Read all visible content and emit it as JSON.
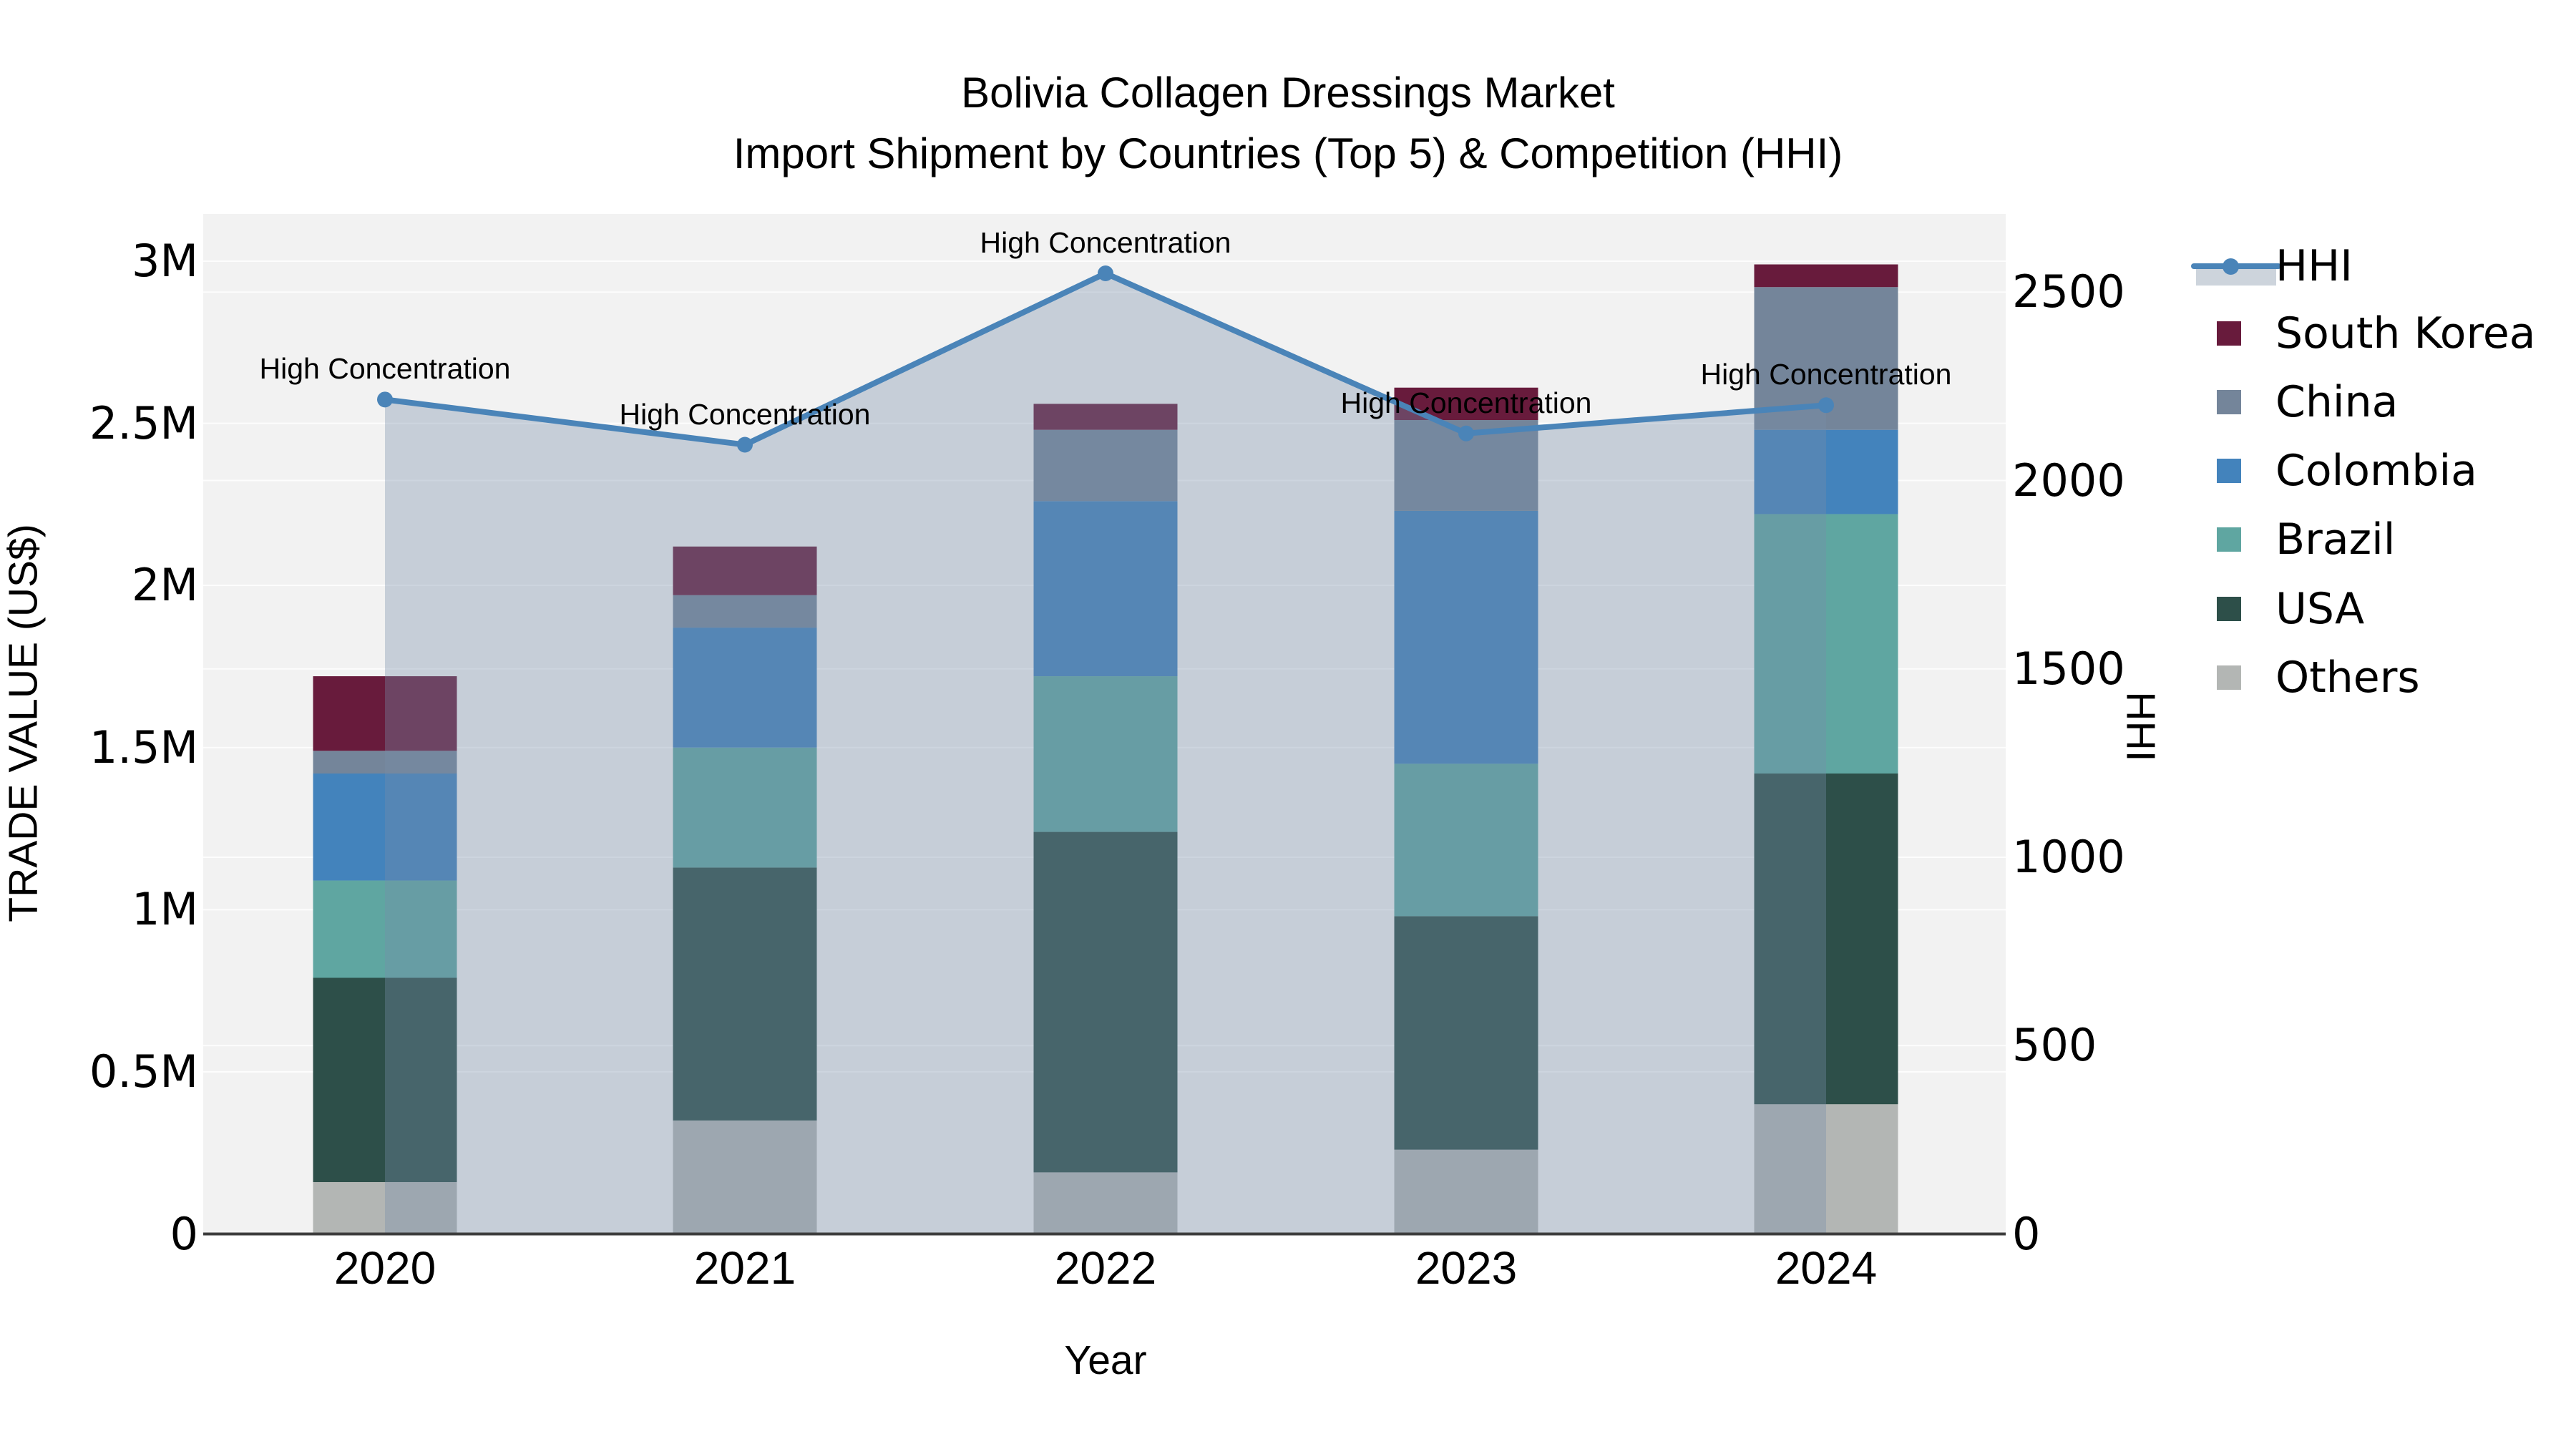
{
  "title": {
    "line1": "Bolivia Collagen Dressings Market",
    "line2": "Import Shipment by Countries (Top 5) & Competition (HHI)"
  },
  "axes": {
    "y_left": {
      "title": "TRADE VALUE (US$)",
      "tick_labels": [
        "0",
        "0.5M",
        "1M",
        "1.5M",
        "2M",
        "2.5M",
        "3M"
      ],
      "tick_values_musd": [
        0,
        0.5,
        1,
        1.5,
        2,
        2.5,
        3
      ],
      "range_musd": [
        0,
        3
      ]
    },
    "y_right": {
      "title": "HHI",
      "tick_labels": [
        "0",
        "500",
        "1000",
        "1500",
        "2000",
        "2500"
      ],
      "tick_values": [
        0,
        500,
        1000,
        1500,
        2000,
        2500
      ],
      "range": [
        0,
        2500
      ]
    },
    "x": {
      "title": "Year",
      "categories": [
        "2020",
        "2021",
        "2022",
        "2023",
        "2024"
      ]
    }
  },
  "chart_data": {
    "type": "bar",
    "subtype": "stacked-bar-with-line",
    "categories": [
      "2020",
      "2021",
      "2022",
      "2023",
      "2024"
    ],
    "stack_order_bottom_to_top": [
      "Others",
      "USA",
      "Brazil",
      "Colombia",
      "China",
      "South Korea"
    ],
    "series": [
      {
        "name": "South Korea",
        "type": "bar",
        "color": "#681B3C",
        "values_musd": [
          0.23,
          0.15,
          0.08,
          0.1,
          0.07
        ]
      },
      {
        "name": "China",
        "type": "bar",
        "color": "#74859A",
        "values_musd": [
          0.07,
          0.1,
          0.22,
          0.28,
          0.44
        ]
      },
      {
        "name": "Colombia",
        "type": "bar",
        "color": "#4383BC",
        "values_musd": [
          0.33,
          0.37,
          0.54,
          0.78,
          0.26
        ]
      },
      {
        "name": "Brazil",
        "type": "bar",
        "color": "#5FA6A1",
        "values_musd": [
          0.3,
          0.37,
          0.48,
          0.47,
          0.8
        ]
      },
      {
        "name": "USA",
        "type": "bar",
        "color": "#2D4F49",
        "values_musd": [
          0.63,
          0.78,
          1.05,
          0.72,
          1.02
        ]
      },
      {
        "name": "Others",
        "type": "bar",
        "color": "#B3B6B4",
        "values_musd": [
          0.16,
          0.35,
          0.19,
          0.26,
          0.4
        ]
      }
    ],
    "totals_musd": [
      1.72,
      2.12,
      2.56,
      2.61,
      2.99
    ],
    "hhi": {
      "name": "HHI",
      "type": "line",
      "color": "#4A84B8",
      "area_fill_color": "rgba(120,140,170,0.36)",
      "values": [
        2215,
        2095,
        2550,
        2125,
        2200
      ],
      "annotations": [
        "High Concentration",
        "High Concentration",
        "High Concentration",
        "High Concentration",
        "High Concentration"
      ]
    },
    "legend_order": [
      "HHI",
      "South Korea",
      "China",
      "Colombia",
      "Brazil",
      "USA",
      "Others"
    ],
    "legend_hhi_band_color": "#CDD4DC",
    "plot_bg": "#F2F2F2",
    "grid_color": "rgba(255,255,255,0.8)",
    "axis_line_color": "#3D3D3D"
  }
}
